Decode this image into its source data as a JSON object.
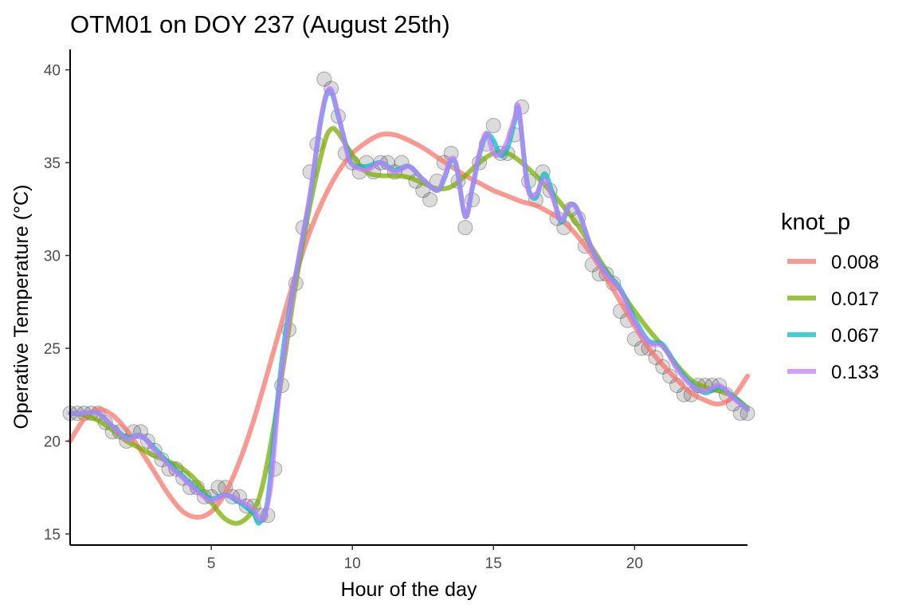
{
  "chart_data": {
    "type": "line",
    "title": "OTM01 on DOY 237 (August 25th)",
    "xlabel": "Hour of the day",
    "ylabel": "Operative Temperature (°C)",
    "xlim": [
      0,
      24
    ],
    "ylim": [
      14.4,
      41.1
    ],
    "x_ticks": [
      5,
      10,
      15,
      20
    ],
    "y_ticks": [
      15,
      20,
      25,
      30,
      35,
      40
    ],
    "grid": false,
    "legend": {
      "title": "knot_p",
      "position": "right"
    },
    "observations": {
      "color": "#000000",
      "x": [
        0,
        0.25,
        0.5,
        0.75,
        1,
        1.25,
        1.5,
        1.75,
        2,
        2.25,
        2.5,
        2.75,
        3,
        3.25,
        3.5,
        3.75,
        4,
        4.25,
        4.5,
        4.75,
        5,
        5.25,
        5.5,
        5.75,
        6,
        6.25,
        6.5,
        6.75,
        7,
        7.25,
        7.5,
        7.75,
        8,
        8.25,
        8.5,
        8.75,
        9,
        9.25,
        9.5,
        9.75,
        10,
        10.25,
        10.5,
        10.75,
        11,
        11.25,
        11.5,
        11.75,
        12,
        12.25,
        12.5,
        12.75,
        13,
        13.25,
        13.5,
        13.75,
        14,
        14.25,
        14.5,
        14.75,
        15,
        15.25,
        15.5,
        15.75,
        16,
        16.25,
        16.5,
        16.75,
        17,
        17.25,
        17.5,
        17.75,
        18,
        18.25,
        18.5,
        18.75,
        19,
        19.25,
        19.5,
        19.75,
        20,
        20.25,
        20.5,
        20.75,
        21,
        21.25,
        21.5,
        21.75,
        22,
        22.25,
        22.5,
        22.75,
        23,
        23.25,
        23.5,
        23.75,
        24
      ],
      "y": [
        21.5,
        21.5,
        21.5,
        21.5,
        21.5,
        21,
        20.5,
        20.5,
        20,
        20.5,
        20.5,
        20,
        19.5,
        19,
        18.5,
        18.5,
        18,
        17.5,
        17.5,
        17,
        17,
        17.5,
        17.5,
        17,
        17,
        16.5,
        16.5,
        16,
        16,
        18.5,
        23,
        26,
        28.5,
        31.5,
        34.5,
        36,
        39.5,
        39,
        37.5,
        35.5,
        35,
        34.5,
        35,
        34.5,
        35,
        35,
        34.5,
        35,
        34.5,
        34,
        33.5,
        33,
        34,
        35,
        35.5,
        34,
        31.5,
        33,
        35,
        36,
        37,
        35.5,
        35.5,
        36.5,
        38,
        34,
        33,
        34.5,
        33.5,
        32,
        31.5,
        32.5,
        32,
        30.5,
        29.5,
        29,
        29,
        28.5,
        27,
        26.5,
        25.5,
        25,
        25,
        24.5,
        24,
        23.5,
        23,
        22.5,
        22.5,
        23,
        23,
        23,
        23,
        22.5,
        22,
        21.5,
        21.5
      ]
    },
    "series": [
      {
        "name": "0.008",
        "color": "#F8766D",
        "x": [
          0,
          0.5,
          1,
          1.5,
          2,
          2.5,
          3,
          3.5,
          4,
          4.5,
          5,
          5.5,
          6,
          6.5,
          7,
          7.5,
          8,
          8.5,
          9,
          9.5,
          10,
          10.5,
          11,
          11.5,
          12,
          12.5,
          13,
          13.5,
          14,
          14.5,
          15,
          15.5,
          16,
          16.5,
          17,
          17.5,
          18,
          18.5,
          19,
          19.5,
          20,
          20.5,
          21,
          21.5,
          22,
          22.5,
          23,
          23.5,
          24
        ],
        "y": [
          20,
          21.2,
          21.7,
          21.4,
          20.6,
          19.5,
          18.3,
          17.1,
          16.2,
          15.9,
          16.2,
          17.2,
          18.9,
          21.1,
          23.7,
          26.4,
          29,
          31.3,
          33.1,
          34.5,
          35.5,
          36.1,
          36.5,
          36.5,
          36.2,
          35.8,
          35.3,
          34.8,
          34.3,
          33.9,
          33.5,
          33.2,
          32.9,
          32.7,
          32.3,
          31.8,
          31,
          30,
          28.8,
          27.5,
          26.2,
          25,
          24.1,
          23.3,
          22.6,
          22.2,
          22,
          22.4,
          23.5
        ]
      },
      {
        "name": "0.017",
        "color": "#7CAE00",
        "x": [
          0,
          0.5,
          1,
          1.5,
          2,
          2.5,
          3,
          3.5,
          4,
          4.5,
          5,
          5.5,
          6,
          6.5,
          6.8,
          7.2,
          7.6,
          8,
          8.5,
          9,
          9.25,
          9.5,
          10,
          10.5,
          11,
          11.5,
          12,
          12.5,
          13,
          13.5,
          14,
          14.5,
          15,
          15.5,
          16,
          16.5,
          17,
          17.5,
          18,
          18.5,
          19,
          19.5,
          20,
          20.5,
          21,
          21.5,
          22,
          22.5,
          23,
          23.5,
          24
        ],
        "y": [
          21.5,
          21.4,
          21.1,
          20.6,
          20,
          19.6,
          19.2,
          18.9,
          18.5,
          17.8,
          16.7,
          15.8,
          15.6,
          16.3,
          17.5,
          20.6,
          24.5,
          28.5,
          32.7,
          36,
          36.8,
          36.6,
          35.4,
          34.5,
          34.3,
          34.3,
          34.2,
          33.9,
          33.6,
          33.7,
          34.3,
          35,
          35.5,
          35.5,
          35,
          34.3,
          33.5,
          32.6,
          31.6,
          30.4,
          29.2,
          28.1,
          27,
          26,
          25.1,
          24.1,
          23.3,
          22.9,
          22.7,
          22.4,
          21.8
        ]
      },
      {
        "name": "0.067",
        "color": "#00BFC4",
        "x": [
          0,
          0.5,
          1,
          1.5,
          2,
          2.5,
          3,
          3.5,
          4,
          4.5,
          5,
          5.5,
          6,
          6.5,
          6.7,
          7,
          7.3,
          7.6,
          8,
          8.5,
          8.9,
          9.2,
          9.5,
          9.8,
          10,
          10.5,
          11,
          11.5,
          12,
          12.5,
          13,
          13.25,
          13.5,
          13.7,
          14,
          14.25,
          14.5,
          14.75,
          15,
          15.25,
          15.5,
          15.75,
          15.9,
          16.2,
          16.5,
          16.8,
          17.1,
          17.4,
          17.7,
          18,
          18.5,
          19,
          19.5,
          20,
          20.5,
          21,
          21.5,
          22,
          22.5,
          23,
          23.5,
          24
        ],
        "y": [
          21.5,
          21.5,
          21.5,
          20.8,
          20.2,
          20.3,
          19.6,
          18.8,
          18.1,
          17.4,
          16.9,
          17.1,
          16.7,
          16.1,
          15.6,
          16.8,
          21.5,
          25.5,
          29,
          33.2,
          37.4,
          38.9,
          37.5,
          35.8,
          34.9,
          34.8,
          35,
          34.6,
          34.8,
          34.1,
          33.5,
          34.1,
          35.1,
          34.7,
          32.1,
          33.6,
          35.4,
          36.5,
          36.2,
          35.4,
          35.8,
          37.2,
          37.8,
          33.9,
          33.1,
          34.4,
          33.3,
          31.8,
          32.7,
          32.4,
          30.3,
          29.1,
          28.2,
          26.6,
          25.4,
          25.2,
          24,
          23.1,
          22.6,
          22.9,
          22.4,
          21.7
        ]
      },
      {
        "name": "0.133",
        "color": "#C77CFF",
        "x": [
          0,
          0.5,
          1,
          1.5,
          2,
          2.5,
          3,
          3.5,
          4,
          4.5,
          5,
          5.5,
          6,
          6.5,
          6.8,
          7.1,
          7.4,
          7.7,
          8,
          8.5,
          8.9,
          9.2,
          9.5,
          9.8,
          10,
          10.5,
          11,
          11.5,
          12,
          12.5,
          13,
          13.25,
          13.5,
          13.7,
          14,
          14.25,
          14.5,
          14.75,
          15,
          15.25,
          15.5,
          15.75,
          15.9,
          16.2,
          16.5,
          16.8,
          17.1,
          17.4,
          17.7,
          18,
          18.5,
          19,
          19.5,
          20,
          20.5,
          21,
          21.5,
          22,
          22.5,
          23,
          23.5,
          24
        ],
        "y": [
          21.5,
          21.5,
          21.5,
          20.8,
          20.1,
          20.3,
          19.5,
          18.7,
          18,
          17.3,
          16.8,
          17.1,
          16.8,
          16.3,
          15.8,
          17.5,
          22.5,
          26,
          29,
          33.3,
          37.5,
          39,
          37.6,
          35.6,
          34.9,
          34.6,
          35,
          34.5,
          34.8,
          34.1,
          33.5,
          34.2,
          35.2,
          34.8,
          32.1,
          33.7,
          35.5,
          36.6,
          35.5,
          35.5,
          36.2,
          37.4,
          37.9,
          33.7,
          33.3,
          34.1,
          33.1,
          31.9,
          32.7,
          32.4,
          30.3,
          29,
          28.1,
          26.4,
          25.3,
          25.1,
          23.9,
          23,
          22.7,
          23,
          22.3,
          21.7
        ]
      }
    ]
  }
}
